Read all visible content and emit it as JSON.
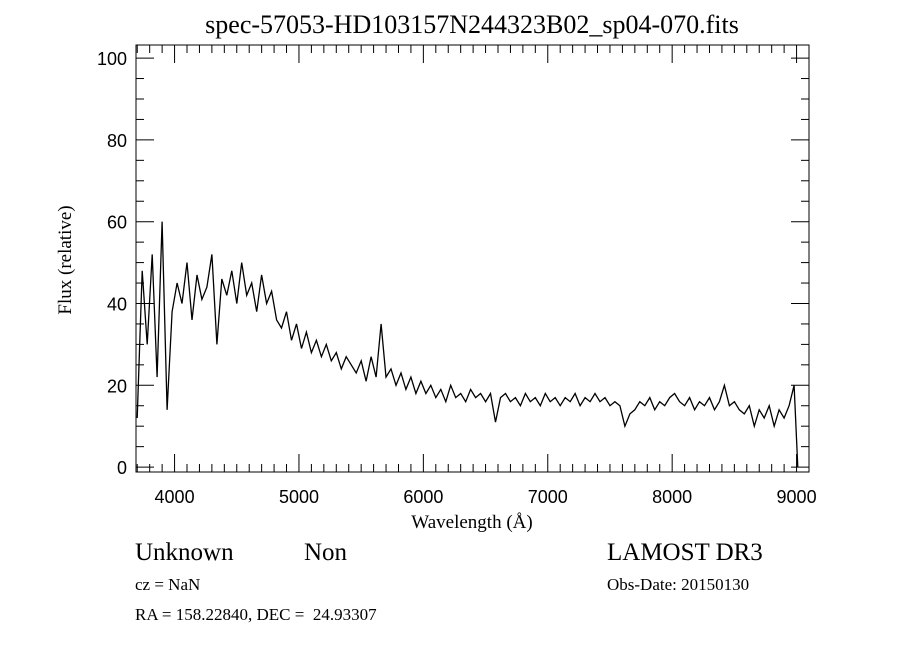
{
  "chart_data": {
    "type": "line",
    "title": "spec-57053-HD103157N244323B02_sp04-070.fits",
    "xlabel": "Wavelength (Å)",
    "ylabel": "Flux (relative)",
    "xlim": [
      3690,
      9100
    ],
    "ylim": [
      -1.2,
      103.2
    ],
    "x_ticks": [
      4000,
      5000,
      6000,
      7000,
      8000,
      9000
    ],
    "x_minor_step": 100,
    "y_ticks": [
      0,
      20,
      40,
      60,
      80,
      100
    ],
    "y_minor_step": 5,
    "grid": false,
    "series": [
      {
        "name": "flux",
        "x_start": 3700,
        "x_step": 40,
        "values": [
          12,
          48,
          30,
          52,
          22,
          60,
          14,
          38,
          45,
          40,
          50,
          36,
          47,
          41,
          44,
          52,
          30,
          46,
          42,
          48,
          40,
          50,
          42,
          45,
          38,
          47,
          40,
          43,
          36,
          34,
          38,
          31,
          35,
          29,
          33,
          28,
          31,
          27,
          30,
          26,
          28,
          24,
          27,
          25,
          23,
          26,
          21,
          27,
          22,
          35,
          22,
          24,
          20,
          23,
          19,
          22,
          18,
          21,
          18,
          20,
          17,
          19,
          16,
          20,
          17,
          18,
          16,
          19,
          17,
          18,
          16,
          18,
          11,
          17,
          18,
          16,
          17,
          15,
          18,
          16,
          17,
          15,
          18,
          16,
          17,
          15,
          17,
          16,
          18,
          15,
          17,
          16,
          18,
          16,
          17,
          15,
          16,
          15,
          10,
          13,
          14,
          16,
          15,
          17,
          14,
          16,
          15,
          17,
          18,
          16,
          15,
          17,
          14,
          16,
          15,
          17,
          14,
          16,
          20,
          15,
          16,
          14,
          13,
          15,
          10,
          14,
          12,
          15,
          10,
          14,
          12,
          15,
          20,
          0
        ]
      }
    ]
  },
  "footer": {
    "object_class": "Unknown",
    "subclass": "Non",
    "survey": "LAMOST DR3",
    "redshift": "cz = NaN",
    "obs_date": "Obs-Date: 20150130",
    "coords": "RA = 158.22840, DEC =  24.93307"
  }
}
